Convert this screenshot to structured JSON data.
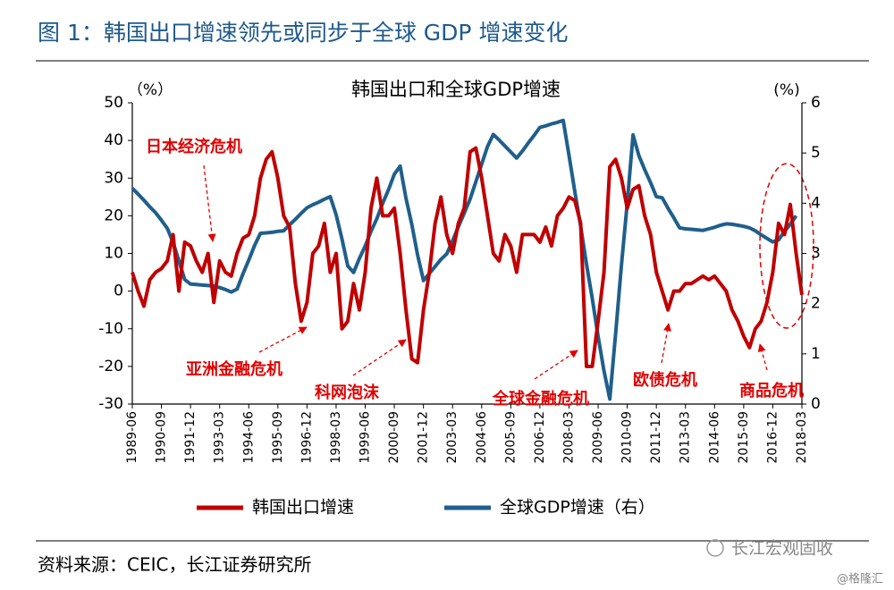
{
  "header": {
    "title": "图 1：韩国出口增速领先或同步于全球 GDP 增速变化"
  },
  "chart_data": {
    "type": "line",
    "title": "韩国出口和全球GDP增速",
    "ylabel": "（%）",
    "y2label": "(%)",
    "categories": [
      "1989-06",
      null,
      null,
      null,
      null,
      "1990-09",
      null,
      null,
      null,
      null,
      "1991-12",
      null,
      null,
      null,
      null,
      "1993-03",
      null,
      null,
      null,
      null,
      "1994-06",
      null,
      null,
      null,
      null,
      "1995-09",
      null,
      null,
      null,
      null,
      "1996-12",
      null,
      null,
      null,
      null,
      "1998-03",
      null,
      null,
      null,
      null,
      "1999-06",
      null,
      null,
      null,
      null,
      "2000-09",
      null,
      null,
      null,
      null,
      "2001-12",
      null,
      null,
      null,
      null,
      "2003-03",
      null,
      null,
      null,
      null,
      "2004-06",
      null,
      null,
      null,
      null,
      "2005-09",
      null,
      null,
      null,
      null,
      "2006-12",
      null,
      null,
      null,
      null,
      "2008-03",
      null,
      null,
      null,
      null,
      "2009-06",
      null,
      null,
      null,
      null,
      "2010-09",
      null,
      null,
      null,
      null,
      "2011-12",
      null,
      null,
      null,
      null,
      "2013-03",
      null,
      null,
      null,
      null,
      "2014-06",
      null,
      null,
      null,
      null,
      "2015-09",
      null,
      null,
      null,
      null,
      "2016-12",
      null,
      null,
      null,
      null,
      "2018-03"
    ],
    "series": [
      {
        "name": "韩国出口增速",
        "color": "#c00000",
        "axis": "y",
        "values": [
          5,
          0,
          -4,
          3,
          5,
          6,
          8,
          15,
          0,
          13,
          12,
          8,
          5,
          10,
          -3,
          8,
          5,
          4,
          10,
          14,
          15,
          20,
          30,
          35,
          37,
          30,
          20,
          17,
          2,
          -8,
          -3,
          10,
          12,
          18,
          5,
          10,
          -10,
          -8,
          2,
          -5,
          5,
          22,
          30,
          20,
          20,
          22,
          10,
          -5,
          -18,
          -19,
          -5,
          5,
          18,
          25,
          15,
          10,
          18,
          22,
          37,
          38,
          30,
          20,
          10,
          8,
          15,
          12,
          5,
          15,
          15,
          15,
          13,
          17,
          12,
          20,
          22,
          25,
          24,
          18,
          -20,
          -20,
          -8,
          5,
          33,
          35,
          30,
          22,
          27,
          28,
          20,
          15,
          5,
          0,
          -5,
          0,
          0,
          2,
          2,
          3,
          4,
          3,
          4,
          2,
          0,
          -5,
          -8,
          -12,
          -15,
          -10,
          -8,
          -3,
          5,
          18,
          15,
          23,
          10,
          -1
        ]
      },
      {
        "name": "全球GDP增速（右）",
        "color": "#1f5f8b",
        "axis": "y2",
        "values": [
          4.3,
          4.18,
          4.06,
          3.93,
          3.81,
          3.66,
          3.5,
          3.22,
          2.85,
          2.48,
          2.39,
          2.38,
          2.37,
          2.36,
          2.35,
          2.32,
          2.28,
          2.23,
          2.29,
          2.59,
          2.87,
          3.16,
          3.4,
          3.41,
          3.42,
          3.44,
          3.45,
          3.57,
          3.68,
          3.8,
          3.91,
          3.97,
          4.02,
          4.08,
          4.13,
          3.77,
          3.29,
          2.75,
          2.62,
          2.9,
          3.15,
          3.44,
          3.69,
          4.0,
          4.27,
          4.58,
          4.74,
          4.1,
          3.58,
          2.97,
          2.46,
          2.6,
          2.74,
          2.88,
          2.99,
          3.25,
          3.53,
          3.8,
          4.08,
          4.43,
          4.78,
          5.13,
          5.37,
          5.26,
          5.14,
          5.02,
          4.9,
          5.04,
          5.2,
          5.35,
          5.51,
          5.54,
          5.58,
          5.61,
          5.65,
          4.95,
          4.23,
          3.54,
          2.79,
          2.1,
          1.35,
          0.66,
          0.1,
          1.4,
          2.76,
          4.0,
          5.36,
          4.95,
          4.67,
          4.41,
          4.13,
          4.11,
          3.9,
          3.71,
          3.51,
          3.49,
          3.48,
          3.47,
          3.46,
          3.49,
          3.52,
          3.56,
          3.59,
          3.58,
          3.56,
          3.54,
          3.51,
          3.45,
          3.37,
          3.3,
          3.23,
          3.27,
          3.44,
          3.58,
          3.75,
          null
        ]
      }
    ],
    "ylim": [
      -30,
      50
    ],
    "yticks": [
      -30,
      -20,
      -10,
      0,
      10,
      20,
      30,
      40,
      50
    ],
    "y2lim": [
      0,
      6
    ],
    "y2ticks": [
      0,
      1,
      2,
      3,
      4,
      5,
      6
    ],
    "annotations": [
      "日本经济危机",
      "亚洲金融危机",
      "科网泡沫",
      "全球金融危机",
      "欧债危机",
      "商品危机"
    ],
    "legend": "bottom"
  },
  "footer": {
    "source": "资料来源：CEIC，长江证券研究所",
    "watermark": "长江宏观固收",
    "credit": "@格隆汇"
  }
}
